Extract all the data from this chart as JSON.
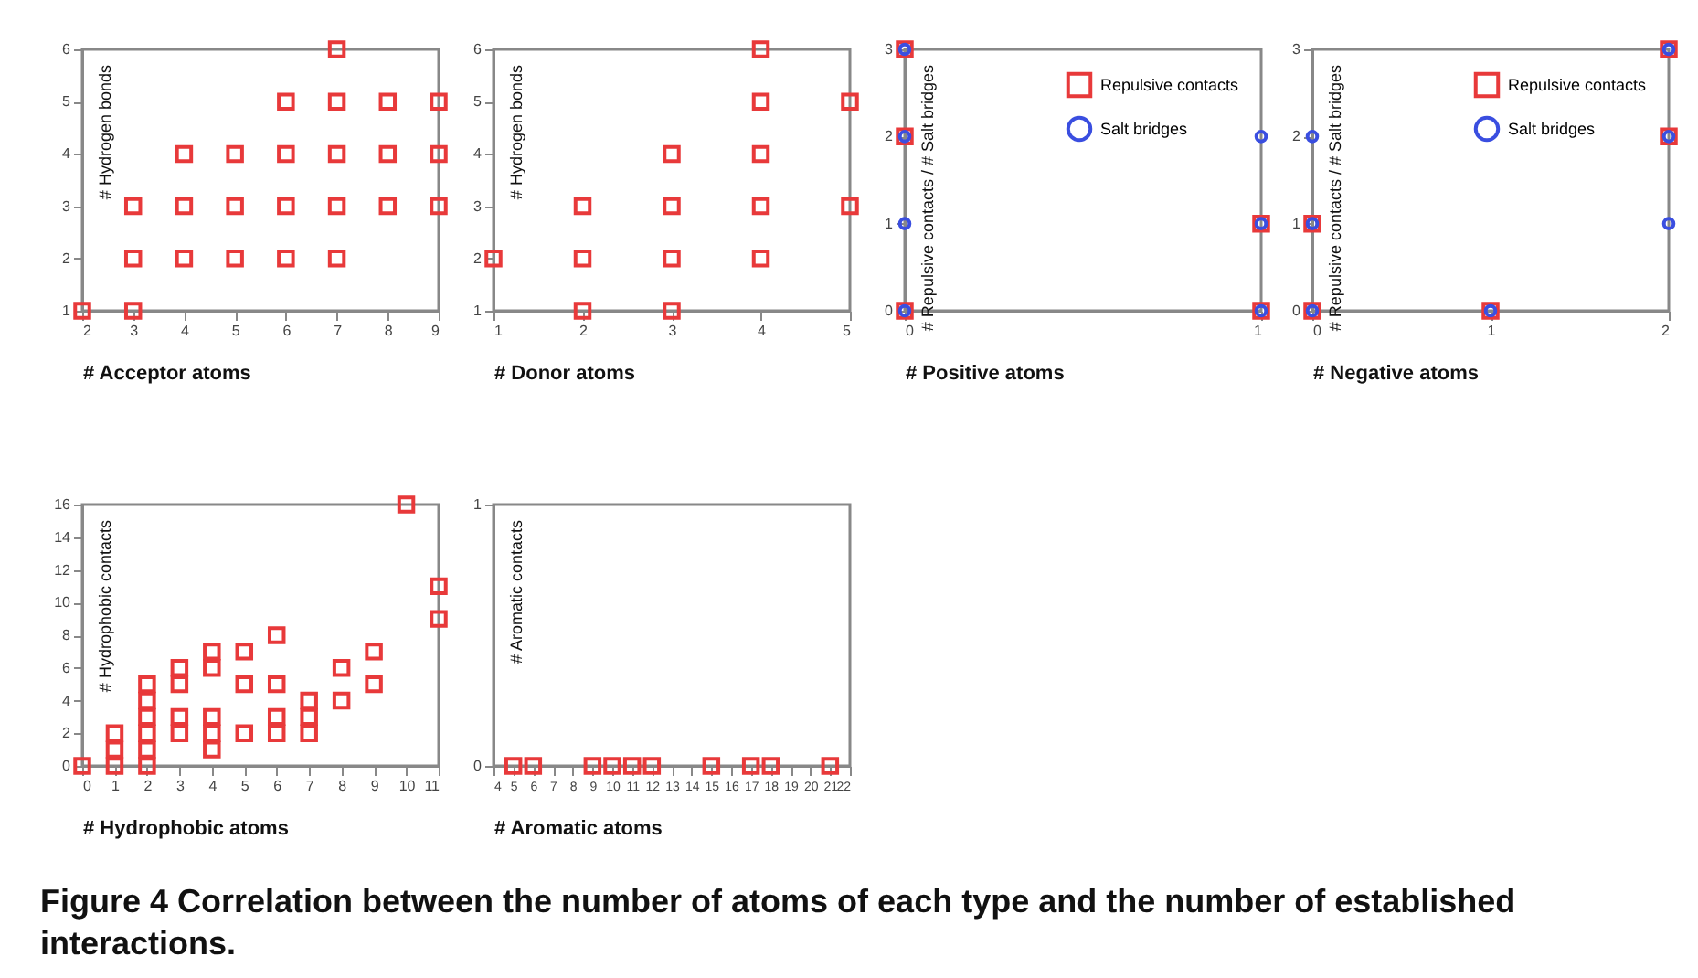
{
  "chart_data": [
    {
      "type": "scatter",
      "xlabel": "# Acceptor atoms",
      "ylabel": "# Hydrogen bonds",
      "xlim": [
        2,
        9
      ],
      "xticks": [
        2,
        3,
        4,
        5,
        6,
        7,
        8,
        9
      ],
      "ylim": [
        1,
        6
      ],
      "yticks": [
        1,
        2,
        3,
        4,
        5,
        6
      ],
      "marker": "square",
      "grid": false,
      "series": [
        {
          "color": "#e8393a",
          "x": [
            2,
            3,
            3,
            3,
            4,
            4,
            4,
            5,
            5,
            5,
            6,
            6,
            6,
            6,
            7,
            7,
            7,
            7,
            7,
            8,
            8,
            8,
            9,
            9,
            9
          ],
          "values": [
            1,
            1,
            2,
            3,
            2,
            3,
            4,
            2,
            3,
            4,
            2,
            3,
            4,
            5,
            2,
            3,
            4,
            5,
            6,
            3,
            4,
            5,
            3,
            4,
            5
          ]
        }
      ]
    },
    {
      "type": "scatter",
      "xlabel": "# Donor atoms",
      "ylabel": "# Hydrogen bonds",
      "xlim": [
        1,
        5
      ],
      "xticks": [
        1,
        2,
        3,
        4,
        5
      ],
      "ylim": [
        1,
        6
      ],
      "yticks": [
        1,
        2,
        3,
        4,
        5,
        6
      ],
      "marker": "square",
      "grid": false,
      "series": [
        {
          "color": "#e8393a",
          "x": [
            1,
            2,
            2,
            2,
            3,
            3,
            3,
            3,
            4,
            4,
            4,
            4,
            4,
            5,
            5
          ],
          "values": [
            2,
            1,
            2,
            3,
            1,
            2,
            3,
            4,
            2,
            3,
            4,
            5,
            6,
            3,
            5
          ]
        }
      ]
    },
    {
      "type": "scatter",
      "xlabel": "# Positive atoms",
      "ylabel": "# Repulsive contacts / # Salt bridges",
      "xlim": [
        0,
        1
      ],
      "xticks": [
        0,
        1
      ],
      "ylim": [
        0,
        3
      ],
      "yticks": [
        0,
        1,
        2,
        3
      ],
      "grid": false,
      "legend": "top right",
      "series": [
        {
          "name": "Repulsive contacts",
          "color": "#e8393a",
          "marker": "square",
          "x": [
            0,
            0,
            0,
            1,
            1
          ],
          "values": [
            0,
            2,
            3,
            0,
            1
          ]
        },
        {
          "name": "Salt bridges",
          "color": "#3a4ee0",
          "marker": "circle",
          "x": [
            0,
            0,
            0,
            0,
            1,
            1,
            1
          ],
          "values": [
            0,
            1,
            2,
            3,
            0,
            1,
            2
          ]
        }
      ]
    },
    {
      "type": "scatter",
      "xlabel": "# Negative atoms",
      "ylabel": "# Repulsive contacts / # Salt bridges",
      "xlim": [
        0,
        2
      ],
      "xticks": [
        0,
        1,
        2
      ],
      "ylim": [
        0,
        3
      ],
      "yticks": [
        0,
        1,
        2,
        3
      ],
      "grid": false,
      "legend": "top right",
      "series": [
        {
          "name": "Repulsive contacts",
          "color": "#e8393a",
          "marker": "square",
          "x": [
            0,
            0,
            1,
            2,
            2
          ],
          "values": [
            0,
            1,
            0,
            2,
            3
          ]
        },
        {
          "name": "Salt bridges",
          "color": "#3a4ee0",
          "marker": "circle",
          "x": [
            0,
            0,
            0,
            1,
            2,
            2,
            2
          ],
          "values": [
            0,
            1,
            2,
            0,
            1,
            2,
            3
          ]
        }
      ]
    },
    {
      "type": "scatter",
      "xlabel": "# Hydrophobic atoms",
      "ylabel": "# Hydrophobic contacts",
      "xlim": [
        0,
        11
      ],
      "xticks": [
        0,
        1,
        2,
        3,
        4,
        5,
        6,
        7,
        8,
        9,
        10,
        11
      ],
      "ylim": [
        0,
        16
      ],
      "yticks": [
        0,
        2,
        4,
        6,
        8,
        10,
        12,
        14,
        16
      ],
      "marker": "square",
      "grid": false,
      "series": [
        {
          "color": "#e8393a",
          "x": [
            0,
            1,
            1,
            1,
            2,
            2,
            2,
            2,
            2,
            2,
            3,
            3,
            3,
            3,
            4,
            4,
            4,
            4,
            4,
            5,
            5,
            5,
            6,
            6,
            6,
            6,
            7,
            7,
            7,
            8,
            8,
            9,
            9,
            10,
            11,
            11
          ],
          "values": [
            0,
            0,
            1,
            2,
            0,
            1,
            2,
            3,
            4,
            5,
            2,
            3,
            5,
            6,
            1,
            2,
            3,
            6,
            7,
            2,
            5,
            7,
            2,
            3,
            5,
            8,
            2,
            3,
            4,
            4,
            6,
            5,
            7,
            16,
            9,
            11
          ]
        }
      ]
    },
    {
      "type": "scatter",
      "xlabel": "# Aromatic atoms",
      "ylabel": "# Aromatic contacts",
      "xlim": [
        4,
        22
      ],
      "xticks": [
        4,
        5,
        6,
        7,
        8,
        9,
        10,
        11,
        12,
        13,
        14,
        15,
        16,
        17,
        18,
        19,
        20,
        21,
        22
      ],
      "ylim": [
        0,
        1
      ],
      "yticks": [
        0,
        1
      ],
      "marker": "square",
      "grid": false,
      "series": [
        {
          "color": "#e8393a",
          "x": [
            5,
            6,
            9,
            10,
            11,
            12,
            15,
            17,
            18,
            21
          ],
          "values": [
            0,
            0,
            0,
            0,
            0,
            0,
            0,
            0,
            0,
            0
          ]
        }
      ],
      "annotations": [
        "Figure 4 Correlation between the number of atoms of each type and the number of established interactions."
      ]
    }
  ]
}
